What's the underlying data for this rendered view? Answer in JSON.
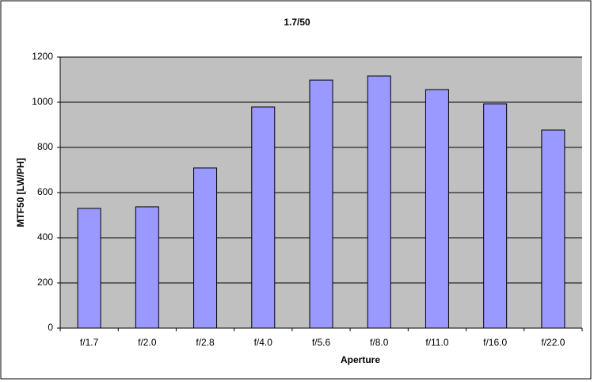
{
  "chart_data": {
    "type": "bar",
    "title": "1.7/50",
    "x_label": "Aperture",
    "y_label": "MTF50 [LW/PH]",
    "categories": [
      "f/1.7",
      "f/2.0",
      "f/2.8",
      "f/4.0",
      "f/5.6",
      "f/8.0",
      "f/11.0",
      "f/16.0",
      "f/22.0"
    ],
    "values": [
      530,
      537,
      709,
      979,
      1098,
      1116,
      1056,
      993,
      877
    ],
    "color": "#9999ff",
    "ylim": [
      0,
      1200
    ],
    "yticks": [
      0,
      200,
      400,
      600,
      800,
      1000,
      1200
    ],
    "grid": true
  }
}
